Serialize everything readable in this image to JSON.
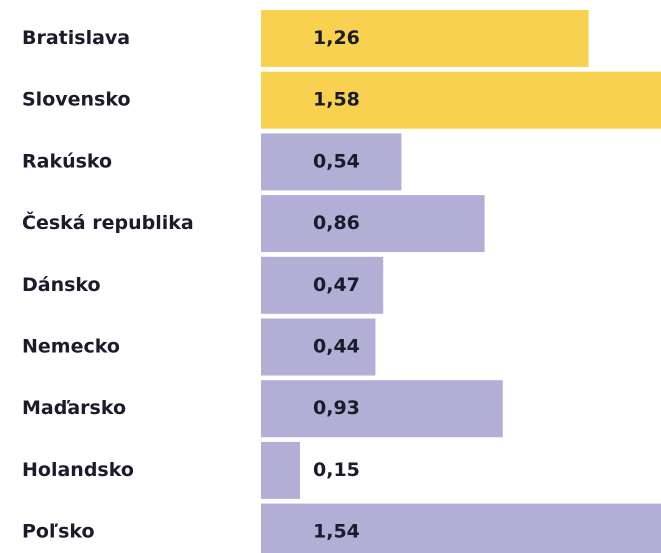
{
  "chart_data": {
    "type": "barh",
    "categories": [
      "Bratislava",
      "Slovensko",
      "Rakúsko",
      "Česká republika",
      "Dánsko",
      "Nemecko",
      "Maďarsko",
      "Holandsko",
      "Poľsko"
    ],
    "values": [
      1.26,
      1.58,
      0.54,
      0.86,
      0.47,
      0.44,
      0.93,
      0.15,
      1.54
    ],
    "value_labels": [
      "1,26",
      "1,58",
      "0,54",
      "0,86",
      "0,47",
      "0,44",
      "0,93",
      "0,15",
      "1,54"
    ],
    "colors": [
      "#f7d14f",
      "#f7d14f",
      "#b3aed6",
      "#b3aed6",
      "#b3aed6",
      "#b3aed6",
      "#b3aed6",
      "#b3aed6",
      "#b3aed6"
    ]
  }
}
